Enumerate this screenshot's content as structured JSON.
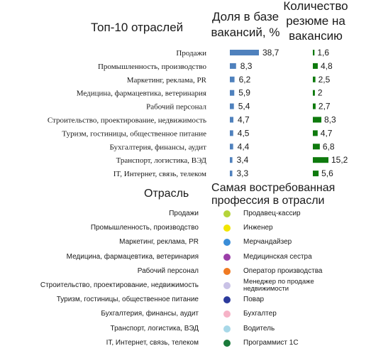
{
  "headers": {
    "top10": "Топ-10 отраслей",
    "share": "Доля в базе вакансий, %",
    "resume": "Количество резюме на вакансию",
    "industry": "Отрасль",
    "profession": "Самая востребованная профессия в отрасли"
  },
  "chart_data": [
    {
      "type": "bar",
      "orientation": "horizontal",
      "categories": [
        "Продажи",
        "Промышленность, производство",
        "Маркетинг, реклама, PR",
        "Медицина, фармацевтика, ветеринария",
        "Рабочий персонал",
        "Строительство, проектирование, недвижимость",
        "Туризм, гостиницы, общественное питание",
        "Бухгалтерия, финансы, аудит",
        "Транспорт, логистика, ВЭД",
        "IT, Интернет, связь, телеком"
      ],
      "values": [
        38.7,
        8.3,
        6.2,
        5.9,
        5.4,
        4.7,
        4.5,
        4.4,
        3.4,
        3.3
      ],
      "value_labels": [
        "38,7",
        "8,3",
        "6,2",
        "5,9",
        "5,4",
        "4,7",
        "4,5",
        "4,4",
        "3,4",
        "3,3"
      ],
      "color": "#4f81bd",
      "xlim": [
        0,
        38.7
      ]
    },
    {
      "type": "bar",
      "orientation": "horizontal",
      "values": [
        1.6,
        4.8,
        2.5,
        2.0,
        2.7,
        8.3,
        4.7,
        6.8,
        15.2,
        5.6
      ],
      "value_labels": [
        "1,6",
        "4,8",
        "2,5",
        "2",
        "2,7",
        "8,3",
        "4,7",
        "6,8",
        "15,2",
        "5,6"
      ],
      "color": "#0e7a0d",
      "xlim": [
        0,
        15.2
      ]
    }
  ],
  "professions": [
    {
      "industry": "Продажи",
      "profession": "Продавец-кассир",
      "color": "#b5d43a"
    },
    {
      "industry": "Промышленность, производство",
      "profession": "Инженер",
      "color": "#f2e600"
    },
    {
      "industry": "Маркетинг, реклама, PR",
      "profession": "Мерчандайзер",
      "color": "#3a8dd8"
    },
    {
      "industry": "Медицина, фармацевтика, ветеринария",
      "profession": "Медицинская сестра",
      "color": "#9b3fa8"
    },
    {
      "industry": "Рабочий персонал",
      "profession": "Оператор производства",
      "color": "#f07a22"
    },
    {
      "industry": "Строительство, проектирование, недвижимость",
      "profession": "Менеджер по продаже недвижимости",
      "color": "#c9c2e6"
    },
    {
      "industry": "Туризм, гостиницы, общественное питание",
      "profession": "Повар",
      "color": "#2c3a9c"
    },
    {
      "industry": "Бухгалтерия, финансы, аудит",
      "profession": "Бухгалтер",
      "color": "#f6b3c7"
    },
    {
      "industry": "Транспорт, логистика, ВЭД",
      "profession": "Водитель",
      "color": "#a8d8e8"
    },
    {
      "industry": "IT, Интернет, связь, телеком",
      "profession": "Программист 1С",
      "color": "#1a7a3a"
    }
  ]
}
